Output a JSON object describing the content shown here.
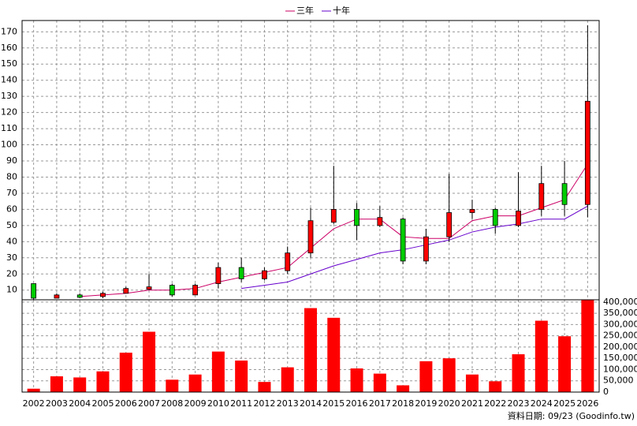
{
  "chart_data": {
    "type": "candlestick",
    "categories": [
      "2002",
      "2003",
      "2004",
      "2005",
      "2006",
      "2007",
      "2008",
      "2009",
      "2010",
      "2011",
      "2012",
      "2013",
      "2014",
      "2015",
      "2016",
      "2017",
      "2018",
      "2019",
      "2020",
      "2021",
      "2022",
      "2023",
      "2024",
      "2025",
      "2026"
    ],
    "open": [
      14,
      5,
      7,
      6,
      8,
      10.5,
      13,
      7,
      14,
      24,
      17,
      22,
      33,
      52,
      60,
      50,
      54,
      28,
      43,
      58,
      60,
      50,
      60,
      76,
      63
    ],
    "high": [
      14,
      8,
      8,
      9,
      12,
      20,
      14,
      14,
      27,
      30,
      24,
      37,
      61,
      87,
      64,
      62,
      55,
      48,
      82,
      66,
      61,
      83,
      87,
      90,
      174
    ],
    "low": [
      4,
      5,
      5,
      5,
      8,
      10,
      6,
      7,
      11,
      15,
      16,
      20,
      30,
      51,
      41,
      49,
      26,
      26,
      40,
      54,
      45,
      49,
      56,
      56,
      55
    ],
    "close": [
      5,
      7,
      5.5,
      8,
      11,
      12,
      7,
      13,
      24,
      17,
      22,
      33,
      53,
      60,
      50,
      55,
      28,
      43,
      58,
      60,
      50,
      59,
      76,
      63,
      127
    ],
    "up_color": "#ff0000",
    "down_color": "#00cc00",
    "series": [
      {
        "name": "三年",
        "color": "#cc0066",
        "values": [
          null,
          null,
          6,
          7,
          8,
          10,
          10,
          11,
          15,
          18,
          21,
          24,
          36,
          48,
          54,
          54,
          43,
          42,
          42,
          53,
          56,
          56,
          61,
          66,
          88
        ]
      },
      {
        "name": "十年",
        "color": "#6600cc",
        "values": [
          null,
          null,
          null,
          null,
          null,
          null,
          null,
          null,
          null,
          11,
          13,
          15,
          20,
          25,
          29,
          33,
          35,
          38,
          41,
          46,
          49,
          51,
          54,
          54,
          62
        ]
      }
    ],
    "ylim": [
      4,
      177
    ],
    "yticks": [
      10,
      20,
      30,
      40,
      50,
      60,
      70,
      80,
      90,
      100,
      110,
      120,
      130,
      140,
      150,
      160,
      170
    ],
    "grid": true,
    "volume": {
      "color": "#ff0000",
      "values": [
        15000,
        70000,
        65000,
        92000,
        175000,
        268000,
        55000,
        78000,
        180000,
        140000,
        45000,
        110000,
        373000,
        330000,
        105000,
        82000,
        30000,
        137000,
        150000,
        78000,
        48000,
        168000,
        317000,
        248000,
        410000
      ],
      "ylim": [
        0,
        410000
      ],
      "yticks": [
        {
          "value": 0,
          "label": "0"
        },
        {
          "value": 50000,
          "label": "50,000"
        },
        {
          "value": 100000,
          "label": "100,000"
        },
        {
          "value": 150000,
          "label": "150,000"
        },
        {
          "value": 200000,
          "label": "200,000"
        },
        {
          "value": 250000,
          "label": "250,000"
        },
        {
          "value": 300000,
          "label": "300,000"
        },
        {
          "value": 350000,
          "label": "350,000"
        },
        {
          "value": 400000,
          "label": "400,000"
        }
      ]
    },
    "footer": "資料日期: 09/23 (Goodinfo.tw)"
  }
}
